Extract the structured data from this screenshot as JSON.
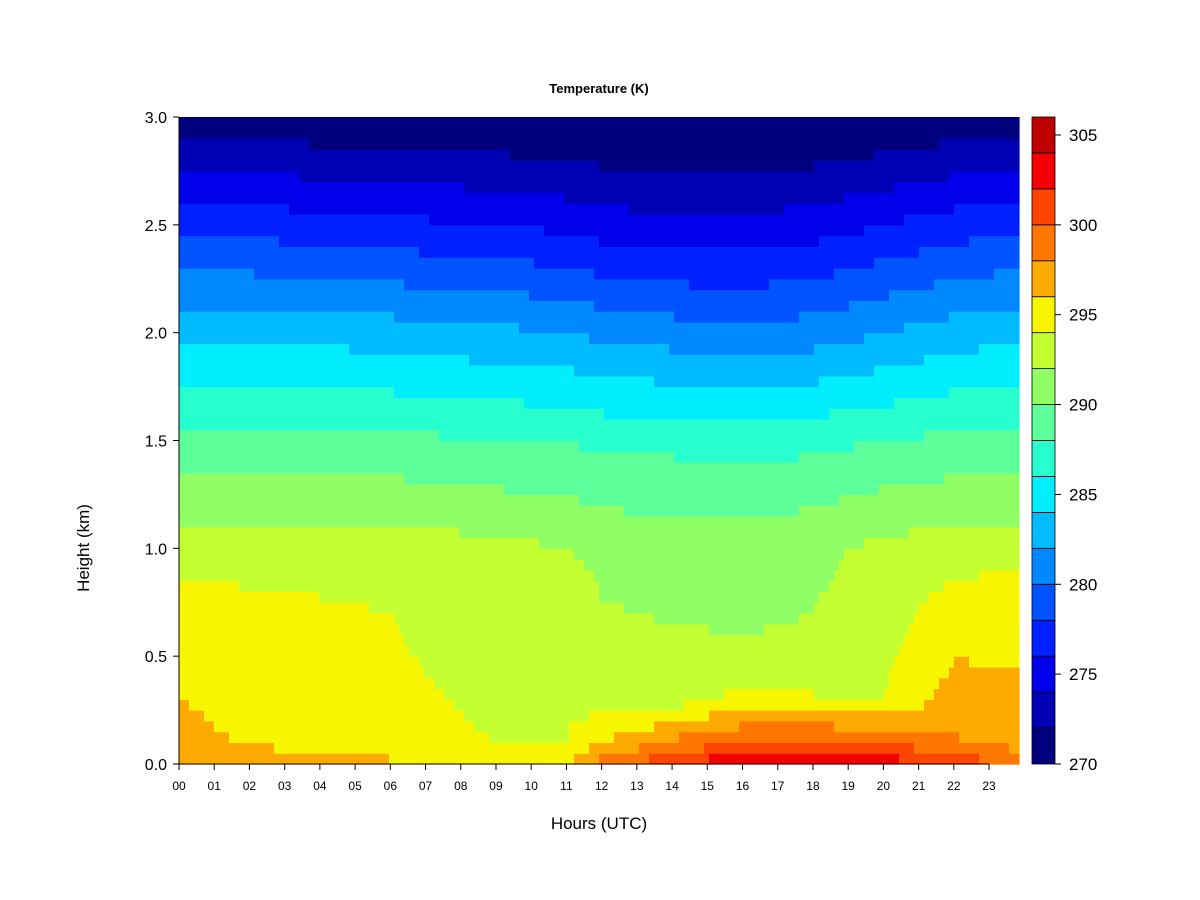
{
  "chart_data": {
    "type": "heatmap",
    "title": "Temperature (K)",
    "xlabel": "Hours (UTC)",
    "ylabel": "Height (km)",
    "x_ticks": [
      "00",
      "01",
      "02",
      "03",
      "04",
      "05",
      "06",
      "07",
      "08",
      "09",
      "10",
      "11",
      "12",
      "13",
      "14",
      "15",
      "16",
      "17",
      "18",
      "19",
      "20",
      "21",
      "22",
      "23"
    ],
    "y_ticks": [
      "0.0",
      "0.5",
      "1.0",
      "1.5",
      "2.0",
      "2.5",
      "3.0"
    ],
    "xlim": [
      0,
      23.85
    ],
    "ylim": [
      0,
      3.0
    ],
    "colorbar": {
      "min": 270,
      "max": 306,
      "step": 2,
      "tick_labels": [
        "270",
        "275",
        "280",
        "285",
        "290",
        "295",
        "300",
        "305"
      ],
      "colors": [
        "#00007f",
        "#0000b4",
        "#0000ea",
        "#0020ff",
        "#0054ff",
        "#0088ff",
        "#00bcff",
        "#00eeff",
        "#28ffce",
        "#5cff9a",
        "#90ff66",
        "#c4ff32",
        "#f8f500",
        "#ffaa00",
        "#ff7700",
        "#ff4400",
        "#f50000",
        "#bf0000",
        "#7f0000"
      ]
    },
    "profiles": [
      {
        "hour": 0,
        "surface_temp": 298.5,
        "levels": [
          [
            0.0,
            298.5
          ],
          [
            0.1,
            296.5
          ],
          [
            0.7,
            295.0
          ],
          [
            1.0,
            293.0
          ],
          [
            1.5,
            288.5
          ],
          [
            2.0,
            283.5
          ],
          [
            2.5,
            277.5
          ],
          [
            3.0,
            270.5
          ]
        ]
      },
      {
        "hour": 3,
        "surface_temp": 297.0,
        "levels": [
          [
            0.0,
            297.0
          ],
          [
            0.1,
            295.5
          ],
          [
            0.6,
            295.0
          ],
          [
            1.0,
            293.0
          ],
          [
            1.5,
            288.5
          ],
          [
            2.0,
            283.5
          ],
          [
            2.5,
            277.0
          ],
          [
            3.0,
            270.5
          ]
        ]
      },
      {
        "hour": 6,
        "surface_temp": 296.5,
        "levels": [
          [
            0.0,
            296.5
          ],
          [
            0.1,
            294.5
          ],
          [
            0.7,
            294.0
          ],
          [
            1.0,
            293.0
          ],
          [
            1.5,
            288.5
          ],
          [
            2.0,
            283.0
          ],
          [
            2.5,
            276.5
          ],
          [
            3.0,
            270.0
          ]
        ]
      },
      {
        "hour": 9,
        "surface_temp": 296.0,
        "levels": [
          [
            0.0,
            296.0
          ],
          [
            0.1,
            294.0
          ],
          [
            0.8,
            293.0
          ],
          [
            1.0,
            292.5
          ],
          [
            1.5,
            288.0
          ],
          [
            2.0,
            282.5
          ],
          [
            2.5,
            276.0
          ],
          [
            3.0,
            270.0
          ]
        ]
      },
      {
        "hour": 11,
        "surface_temp": 296.0,
        "levels": [
          [
            0.0,
            296.0
          ],
          [
            0.1,
            294.0
          ],
          [
            0.8,
            293.0
          ],
          [
            1.0,
            292.0
          ],
          [
            1.5,
            288.0
          ],
          [
            2.0,
            282.0
          ],
          [
            2.5,
            275.5
          ],
          [
            3.0,
            269.5
          ]
        ]
      },
      {
        "hour": 12,
        "surface_temp": 299.0,
        "levels": [
          [
            0.0,
            299.0
          ],
          [
            0.1,
            296.0
          ],
          [
            0.3,
            293.0
          ],
          [
            1.0,
            291.5
          ],
          [
            1.5,
            287.5
          ],
          [
            2.0,
            281.5
          ],
          [
            2.5,
            275.0
          ],
          [
            3.0,
            269.5
          ]
        ]
      },
      {
        "hour": 14,
        "surface_temp": 301.5,
        "levels": [
          [
            0.0,
            301.5
          ],
          [
            0.1,
            298.5
          ],
          [
            0.3,
            293.0
          ],
          [
            1.0,
            291.0
          ],
          [
            1.5,
            287.5
          ],
          [
            2.0,
            281.0
          ],
          [
            2.5,
            274.5
          ],
          [
            3.0,
            269.5
          ]
        ]
      },
      {
        "hour": 16,
        "surface_temp": 304.0,
        "levels": [
          [
            0.0,
            304.0
          ],
          [
            0.1,
            300.0
          ],
          [
            0.3,
            295.0
          ],
          [
            0.4,
            292.5
          ],
          [
            1.0,
            291.0
          ],
          [
            1.5,
            287.0
          ],
          [
            2.0,
            280.5
          ],
          [
            2.5,
            274.5
          ],
          [
            3.0,
            269.5
          ]
        ]
      },
      {
        "hour": 18,
        "surface_temp": 304.5,
        "levels": [
          [
            0.0,
            304.5
          ],
          [
            0.1,
            300.5
          ],
          [
            0.3,
            294.5
          ],
          [
            0.4,
            292.5
          ],
          [
            1.0,
            291.5
          ],
          [
            1.5,
            287.5
          ],
          [
            2.0,
            281.0
          ],
          [
            2.5,
            275.0
          ],
          [
            3.0,
            269.5
          ]
        ]
      },
      {
        "hour": 20,
        "surface_temp": 303.5,
        "levels": [
          [
            0.0,
            303.5
          ],
          [
            0.1,
            299.5
          ],
          [
            0.3,
            294.0
          ],
          [
            1.0,
            292.5
          ],
          [
            1.5,
            288.0
          ],
          [
            2.0,
            282.0
          ],
          [
            2.5,
            276.0
          ],
          [
            3.0,
            270.0
          ]
        ]
      },
      {
        "hour": 22,
        "surface_temp": 301.0,
        "levels": [
          [
            0.0,
            301.0
          ],
          [
            0.15,
            297.5
          ],
          [
            0.7,
            295.0
          ],
          [
            1.0,
            293.0
          ],
          [
            1.5,
            288.5
          ],
          [
            2.0,
            283.0
          ],
          [
            2.5,
            277.0
          ],
          [
            3.0,
            270.5
          ]
        ]
      },
      {
        "hour": 23.85,
        "surface_temp": 300.0,
        "levels": [
          [
            0.0,
            300.0
          ],
          [
            0.1,
            297.0
          ],
          [
            0.8,
            295.0
          ],
          [
            1.0,
            293.0
          ],
          [
            1.5,
            288.5
          ],
          [
            2.0,
            283.5
          ],
          [
            2.5,
            277.5
          ],
          [
            3.0,
            270.5
          ]
        ]
      }
    ]
  }
}
